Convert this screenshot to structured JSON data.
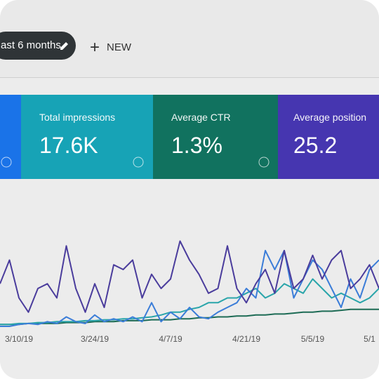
{
  "toolbar": {
    "date_range": "ast 6 months",
    "new_button": "NEW"
  },
  "metrics": [
    {
      "label": "Total impressions",
      "value": "17.6K",
      "color": "#17a3b6"
    },
    {
      "label": "Average CTR",
      "value": "1.3%",
      "color": "#11725f"
    },
    {
      "label": "Average position",
      "value": "25.2",
      "color": "#4636b0"
    }
  ],
  "chart_data": {
    "type": "line",
    "categories": [
      null,
      null,
      "3/10/19",
      null,
      null,
      null,
      null,
      null,
      null,
      null,
      "3/24/19",
      null,
      null,
      null,
      null,
      null,
      null,
      null,
      "4/7/19",
      null,
      null,
      null,
      null,
      null,
      null,
      null,
      "4/21/19",
      null,
      null,
      null,
      null,
      null,
      null,
      "5/5/19",
      null,
      null,
      null,
      null,
      null,
      "5/1",
      null
    ],
    "ylim": [
      0,
      100
    ],
    "series": [
      {
        "color": "#4a3c9c",
        "values": [
          45,
          70,
          30,
          15,
          40,
          45,
          30,
          85,
          40,
          15,
          45,
          20,
          65,
          60,
          70,
          30,
          55,
          40,
          50,
          90,
          70,
          55,
          35,
          40,
          85,
          40,
          25,
          45,
          60,
          35,
          80,
          40,
          50,
          75,
          50,
          70,
          80,
          40,
          50,
          65,
          40
        ]
      },
      {
        "color": "#3b7dd8",
        "values": [
          0,
          0,
          2,
          3,
          2,
          5,
          3,
          10,
          5,
          3,
          12,
          5,
          8,
          5,
          10,
          5,
          25,
          5,
          15,
          8,
          20,
          10,
          8,
          15,
          20,
          25,
          40,
          30,
          80,
          60,
          80,
          30,
          50,
          70,
          60,
          40,
          20,
          50,
          30,
          60,
          70
        ]
      },
      {
        "color": "#2aa5aa",
        "values": [
          2,
          2,
          3,
          3,
          4,
          4,
          5,
          5,
          5,
          6,
          6,
          7,
          7,
          8,
          8,
          9,
          10,
          12,
          15,
          15,
          18,
          20,
          25,
          25,
          30,
          30,
          35,
          40,
          30,
          35,
          45,
          40,
          35,
          50,
          40,
          30,
          35,
          30,
          25,
          30,
          40
        ]
      },
      {
        "color": "#1d6b55",
        "values": [
          2,
          2,
          2,
          3,
          3,
          3,
          3,
          4,
          4,
          4,
          5,
          5,
          5,
          6,
          6,
          6,
          7,
          7,
          7,
          8,
          8,
          9,
          9,
          10,
          10,
          11,
          11,
          12,
          12,
          13,
          13,
          14,
          15,
          15,
          16,
          16,
          17,
          18,
          18,
          18,
          18
        ]
      }
    ]
  }
}
